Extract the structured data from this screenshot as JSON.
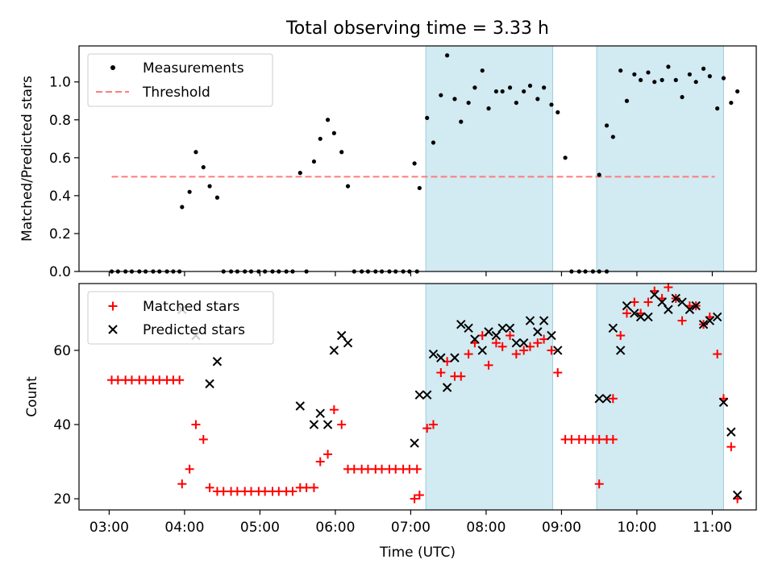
{
  "chart_data": [
    {
      "type": "scatter",
      "title": "Total observing time = 3.33 h",
      "ylabel": "Matched/Predicted stars",
      "ylim": [
        0,
        1.19
      ],
      "yticks": [
        0.0,
        0.2,
        0.4,
        0.6,
        0.8,
        1.0
      ],
      "ytick_labels": [
        "0.0",
        "0.2",
        "0.4",
        "0.6",
        "0.8",
        "1.0"
      ],
      "threshold": 0.5,
      "threshold_range": [
        "03:02",
        "11:02"
      ],
      "shaded_intervals": [
        [
          "07:12",
          "08:53"
        ],
        [
          "09:28",
          "11:09"
        ]
      ],
      "legend": {
        "position": "top-left",
        "entries": [
          "Measurements",
          "Threshold"
        ]
      },
      "series": [
        {
          "name": "Measurements",
          "marker": "dot",
          "color": "#000000",
          "points": [
            [
              "03:02",
              0
            ],
            [
              "03:07",
              0
            ],
            [
              "03:13",
              0
            ],
            [
              "03:18",
              0
            ],
            [
              "03:24",
              0
            ],
            [
              "03:29",
              0
            ],
            [
              "03:35",
              0
            ],
            [
              "03:40",
              0
            ],
            [
              "03:46",
              0
            ],
            [
              "03:51",
              0
            ],
            [
              "03:56",
              0
            ],
            [
              "03:58",
              0.34
            ],
            [
              "04:04",
              0.42
            ],
            [
              "04:09",
              0.63
            ],
            [
              "04:15",
              0.55
            ],
            [
              "04:20",
              0.45
            ],
            [
              "04:26",
              0.39
            ],
            [
              "04:31",
              0
            ],
            [
              "04:37",
              0
            ],
            [
              "04:42",
              0
            ],
            [
              "04:48",
              0
            ],
            [
              "04:53",
              0
            ],
            [
              "04:59",
              0
            ],
            [
              "05:04",
              0
            ],
            [
              "05:10",
              0
            ],
            [
              "05:15",
              0
            ],
            [
              "05:21",
              0
            ],
            [
              "05:26",
              0
            ],
            [
              "05:32",
              0.52
            ],
            [
              "05:37",
              0
            ],
            [
              "05:43",
              0.58
            ],
            [
              "05:48",
              0.7
            ],
            [
              "05:54",
              0.8
            ],
            [
              "05:59",
              0.73
            ],
            [
              "06:05",
              0.63
            ],
            [
              "06:10",
              0.45
            ],
            [
              "06:15",
              0
            ],
            [
              "06:21",
              0
            ],
            [
              "06:26",
              0
            ],
            [
              "06:32",
              0
            ],
            [
              "06:37",
              0
            ],
            [
              "06:43",
              0
            ],
            [
              "06:48",
              0
            ],
            [
              "06:54",
              0
            ],
            [
              "06:59",
              0
            ],
            [
              "07:05",
              0
            ],
            [
              "07:03",
              0.57
            ],
            [
              "07:07",
              0.44
            ],
            [
              "07:13",
              0.81
            ],
            [
              "07:18",
              0.68
            ],
            [
              "07:24",
              0.93
            ],
            [
              "07:29",
              1.14
            ],
            [
              "07:35",
              0.91
            ],
            [
              "07:40",
              0.79
            ],
            [
              "07:46",
              0.89
            ],
            [
              "07:51",
              0.97
            ],
            [
              "07:57",
              1.06
            ],
            [
              "08:02",
              0.86
            ],
            [
              "08:08",
              0.95
            ],
            [
              "08:13",
              0.95
            ],
            [
              "08:19",
              0.97
            ],
            [
              "08:24",
              0.89
            ],
            [
              "08:30",
              0.95
            ],
            [
              "08:35",
              0.98
            ],
            [
              "08:41",
              0.91
            ],
            [
              "08:46",
              0.97
            ],
            [
              "08:52",
              0.88
            ],
            [
              "08:57",
              0.84
            ],
            [
              "09:03",
              0.6
            ],
            [
              "09:08",
              0
            ],
            [
              "09:14",
              0
            ],
            [
              "09:19",
              0
            ],
            [
              "09:25",
              0
            ],
            [
              "09:30",
              0
            ],
            [
              "09:36",
              0
            ],
            [
              "09:30",
              0.51
            ],
            [
              "09:36",
              0.77
            ],
            [
              "09:41",
              0.71
            ],
            [
              "09:47",
              1.06
            ],
            [
              "09:52",
              0.9
            ],
            [
              "09:58",
              1.04
            ],
            [
              "10:03",
              1.01
            ],
            [
              "10:09",
              1.05
            ],
            [
              "10:14",
              1.0
            ],
            [
              "10:20",
              1.01
            ],
            [
              "10:25",
              1.08
            ],
            [
              "10:31",
              1.01
            ],
            [
              "10:36",
              0.92
            ],
            [
              "10:42",
              1.04
            ],
            [
              "10:47",
              1.0
            ],
            [
              "10:53",
              1.07
            ],
            [
              "10:58",
              1.03
            ],
            [
              "11:04",
              0.86
            ],
            [
              "11:09",
              1.02
            ],
            [
              "11:15",
              0.89
            ],
            [
              "11:20",
              0.95
            ]
          ]
        }
      ]
    },
    {
      "type": "scatter",
      "xlabel": "Time (UTC)",
      "ylabel": "Count",
      "xlim": [
        "02:36",
        "11:35"
      ],
      "ylim": [
        17,
        78
      ],
      "xticks": [
        "03:00",
        "04:00",
        "05:00",
        "06:00",
        "07:00",
        "08:00",
        "09:00",
        "10:00",
        "11:00"
      ],
      "yticks": [
        20,
        40,
        60
      ],
      "shaded_intervals": [
        [
          "07:12",
          "08:53"
        ],
        [
          "09:28",
          "11:09"
        ]
      ],
      "legend": {
        "position": "top-left",
        "entries": [
          "Matched stars",
          "Predicted stars"
        ]
      },
      "series": [
        {
          "name": "Matched stars",
          "marker": "plus",
          "color": "#ff0000",
          "points": [
            [
              "03:02",
              52
            ],
            [
              "03:07",
              52
            ],
            [
              "03:13",
              52
            ],
            [
              "03:18",
              52
            ],
            [
              "03:24",
              52
            ],
            [
              "03:29",
              52
            ],
            [
              "03:35",
              52
            ],
            [
              "03:40",
              52
            ],
            [
              "03:46",
              52
            ],
            [
              "03:51",
              52
            ],
            [
              "03:56",
              52
            ],
            [
              "03:58",
              24
            ],
            [
              "04:04",
              28
            ],
            [
              "04:09",
              40
            ],
            [
              "04:15",
              36
            ],
            [
              "04:20",
              23
            ],
            [
              "04:26",
              22
            ],
            [
              "04:31",
              22
            ],
            [
              "04:37",
              22
            ],
            [
              "04:42",
              22
            ],
            [
              "04:48",
              22
            ],
            [
              "04:53",
              22
            ],
            [
              "04:59",
              22
            ],
            [
              "05:04",
              22
            ],
            [
              "05:10",
              22
            ],
            [
              "05:15",
              22
            ],
            [
              "05:21",
              22
            ],
            [
              "05:26",
              22
            ],
            [
              "05:32",
              23
            ],
            [
              "05:37",
              23
            ],
            [
              "05:43",
              23
            ],
            [
              "05:48",
              30
            ],
            [
              "05:54",
              32
            ],
            [
              "05:59",
              44
            ],
            [
              "06:05",
              40
            ],
            [
              "06:10",
              28
            ],
            [
              "06:15",
              28
            ],
            [
              "06:21",
              28
            ],
            [
              "06:26",
              28
            ],
            [
              "06:32",
              28
            ],
            [
              "06:37",
              28
            ],
            [
              "06:43",
              28
            ],
            [
              "06:48",
              28
            ],
            [
              "06:54",
              28
            ],
            [
              "06:59",
              28
            ],
            [
              "07:05",
              28
            ],
            [
              "07:03",
              20
            ],
            [
              "07:07",
              21
            ],
            [
              "07:13",
              39
            ],
            [
              "07:18",
              40
            ],
            [
              "07:24",
              54
            ],
            [
              "07:29",
              57
            ],
            [
              "07:35",
              53
            ],
            [
              "07:40",
              53
            ],
            [
              "07:46",
              59
            ],
            [
              "07:51",
              62
            ],
            [
              "07:57",
              64
            ],
            [
              "08:02",
              56
            ],
            [
              "08:08",
              62
            ],
            [
              "08:13",
              61
            ],
            [
              "08:19",
              64
            ],
            [
              "08:24",
              59
            ],
            [
              "08:30",
              60
            ],
            [
              "08:35",
              61
            ],
            [
              "08:41",
              62
            ],
            [
              "08:46",
              63
            ],
            [
              "08:52",
              60
            ],
            [
              "08:57",
              54
            ],
            [
              "09:03",
              36
            ],
            [
              "09:08",
              36
            ],
            [
              "09:14",
              36
            ],
            [
              "09:19",
              36
            ],
            [
              "09:25",
              36
            ],
            [
              "09:30",
              36
            ],
            [
              "09:36",
              36
            ],
            [
              "09:41",
              36
            ],
            [
              "09:30",
              24
            ],
            [
              "09:36",
              36
            ],
            [
              "09:41",
              47
            ],
            [
              "09:47",
              64
            ],
            [
              "09:52",
              70
            ],
            [
              "09:58",
              73
            ],
            [
              "10:03",
              70
            ],
            [
              "10:09",
              73
            ],
            [
              "10:14",
              76
            ],
            [
              "10:20",
              74
            ],
            [
              "10:25",
              77
            ],
            [
              "10:31",
              74
            ],
            [
              "10:36",
              68
            ],
            [
              "10:42",
              72
            ],
            [
              "10:47",
              72
            ],
            [
              "10:53",
              67
            ],
            [
              "10:58",
              69
            ],
            [
              "11:04",
              59
            ],
            [
              "11:09",
              47
            ],
            [
              "11:15",
              34
            ],
            [
              "11:20",
              20
            ]
          ]
        },
        {
          "name": "Predicted stars",
          "marker": "x",
          "color": "#000000",
          "points": [
            [
              "03:58",
              71
            ],
            [
              "04:09",
              64
            ],
            [
              "04:20",
              51
            ],
            [
              "04:26",
              57
            ],
            [
              "05:32",
              45
            ],
            [
              "05:43",
              40
            ],
            [
              "05:48",
              43
            ],
            [
              "05:54",
              40
            ],
            [
              "05:59",
              60
            ],
            [
              "06:05",
              64
            ],
            [
              "06:10",
              62
            ],
            [
              "07:03",
              35
            ],
            [
              "07:07",
              48
            ],
            [
              "07:13",
              48
            ],
            [
              "07:18",
              59
            ],
            [
              "07:24",
              58
            ],
            [
              "07:29",
              50
            ],
            [
              "07:35",
              58
            ],
            [
              "07:40",
              67
            ],
            [
              "07:46",
              66
            ],
            [
              "07:51",
              63
            ],
            [
              "07:57",
              60
            ],
            [
              "08:02",
              65
            ],
            [
              "08:08",
              64
            ],
            [
              "08:13",
              66
            ],
            [
              "08:19",
              66
            ],
            [
              "08:24",
              62
            ],
            [
              "08:30",
              62
            ],
            [
              "08:35",
              68
            ],
            [
              "08:41",
              65
            ],
            [
              "08:46",
              68
            ],
            [
              "08:52",
              64
            ],
            [
              "08:57",
              60
            ],
            [
              "09:30",
              47
            ],
            [
              "09:36",
              47
            ],
            [
              "09:41",
              66
            ],
            [
              "09:47",
              60
            ],
            [
              "09:52",
              72
            ],
            [
              "09:58",
              70
            ],
            [
              "10:03",
              69
            ],
            [
              "10:09",
              69
            ],
            [
              "10:14",
              75
            ],
            [
              "10:20",
              73
            ],
            [
              "10:25",
              71
            ],
            [
              "10:31",
              74
            ],
            [
              "10:36",
              73
            ],
            [
              "10:42",
              71
            ],
            [
              "10:47",
              72
            ],
            [
              "10:53",
              67
            ],
            [
              "10:58",
              68
            ],
            [
              "11:04",
              69
            ],
            [
              "11:09",
              46
            ],
            [
              "11:15",
              38
            ],
            [
              "11:20",
              21
            ]
          ]
        }
      ]
    }
  ]
}
